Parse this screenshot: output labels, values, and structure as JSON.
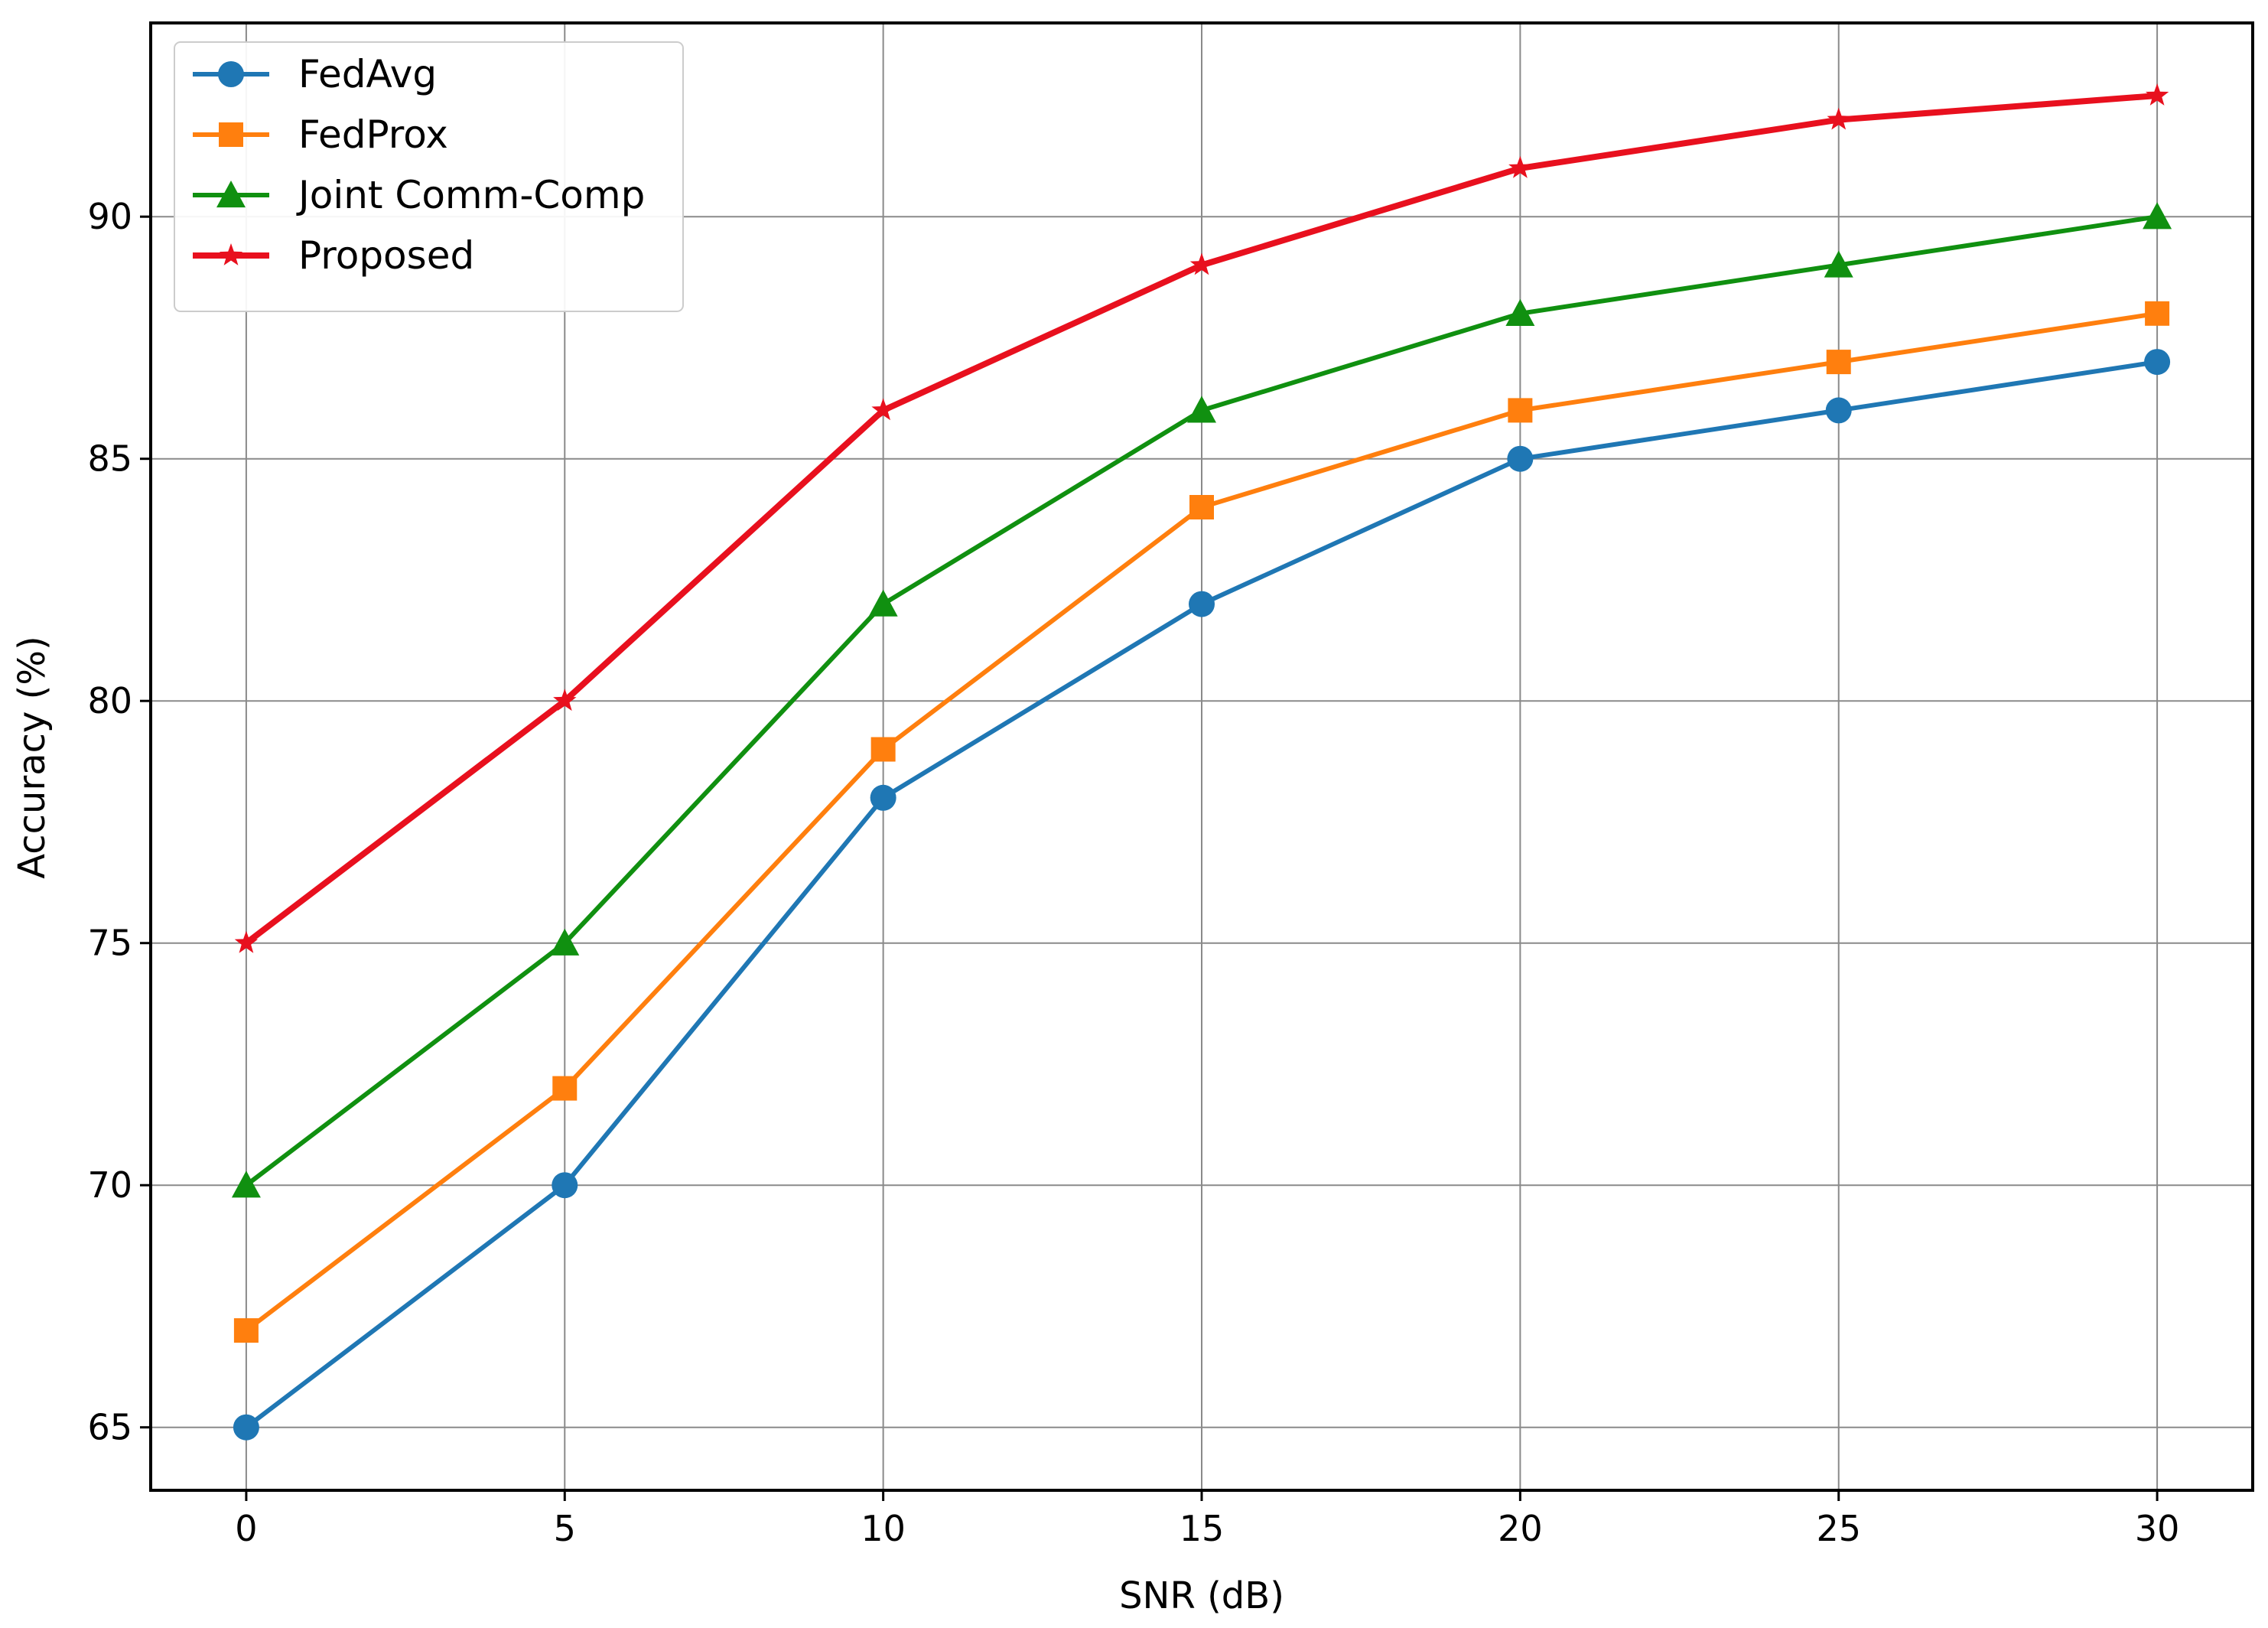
{
  "chart_data": {
    "type": "line",
    "xlabel": "SNR (dB)",
    "ylabel": "Accuracy (%)",
    "x": [
      0,
      5,
      10,
      15,
      20,
      25,
      30
    ],
    "xlim": [
      -1.5,
      31.5
    ],
    "ylim": [
      63.7,
      94.0
    ],
    "xticks": [
      0,
      5,
      10,
      15,
      20,
      25,
      30
    ],
    "yticks": [
      65,
      70,
      75,
      80,
      85,
      90
    ],
    "grid": true,
    "legend_position": "top-left",
    "series": [
      {
        "name": "FedAvg",
        "color": "#1f77b4",
        "marker": "circle",
        "values": [
          65,
          70,
          78,
          82,
          85,
          86,
          87
        ]
      },
      {
        "name": "FedProx",
        "color": "#ff7f0e",
        "marker": "square",
        "values": [
          67,
          72,
          79,
          84,
          86,
          87,
          88
        ]
      },
      {
        "name": "Joint Comm-Comp",
        "color": "#109010",
        "marker": "triangle",
        "values": [
          70,
          75,
          82,
          86,
          88,
          89,
          90
        ]
      },
      {
        "name": "Proposed",
        "color": "#e8101e",
        "marker": "star",
        "values": [
          75,
          80,
          86,
          89,
          91,
          92,
          92.5
        ]
      }
    ]
  }
}
